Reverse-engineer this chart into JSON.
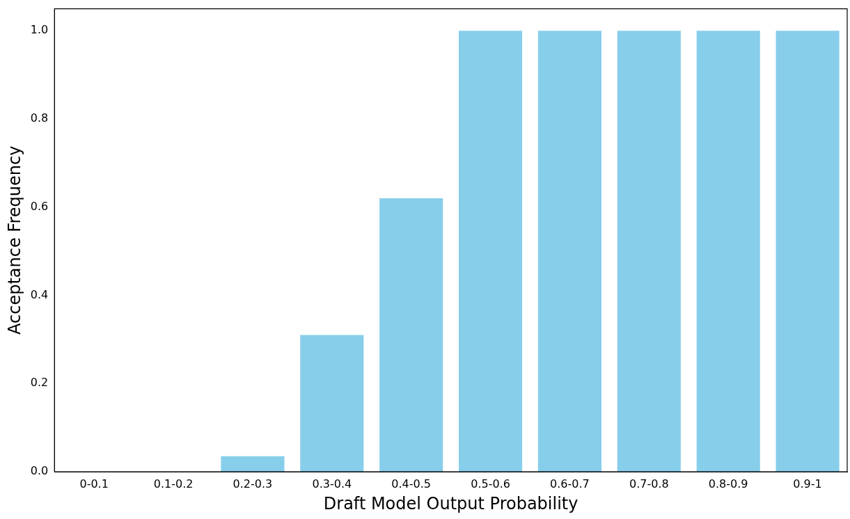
{
  "chart_data": {
    "type": "bar",
    "xlabel": "Draft Model Output Probability",
    "ylabel": "Acceptance Frequency",
    "categories": [
      "0-0.1",
      "0.1-0.2",
      "0.2-0.3",
      "0.3-0.4",
      "0.4-0.5",
      "0.5-0.6",
      "0.6-0.7",
      "0.7-0.8",
      "0.8-0.9",
      "0.9-1"
    ],
    "values": [
      0,
      0,
      0.035,
      0.31,
      0.62,
      1.0,
      1.0,
      1.0,
      1.0,
      1.0
    ],
    "color": "#87ceeb",
    "ylim": [
      0,
      1.05
    ],
    "yticks": [
      {
        "value": 0,
        "label": "0.0"
      },
      0.2,
      0.4,
      0.6,
      0.8,
      {
        "value": 1,
        "label": "1.0"
      }
    ],
    "grid": false
  }
}
